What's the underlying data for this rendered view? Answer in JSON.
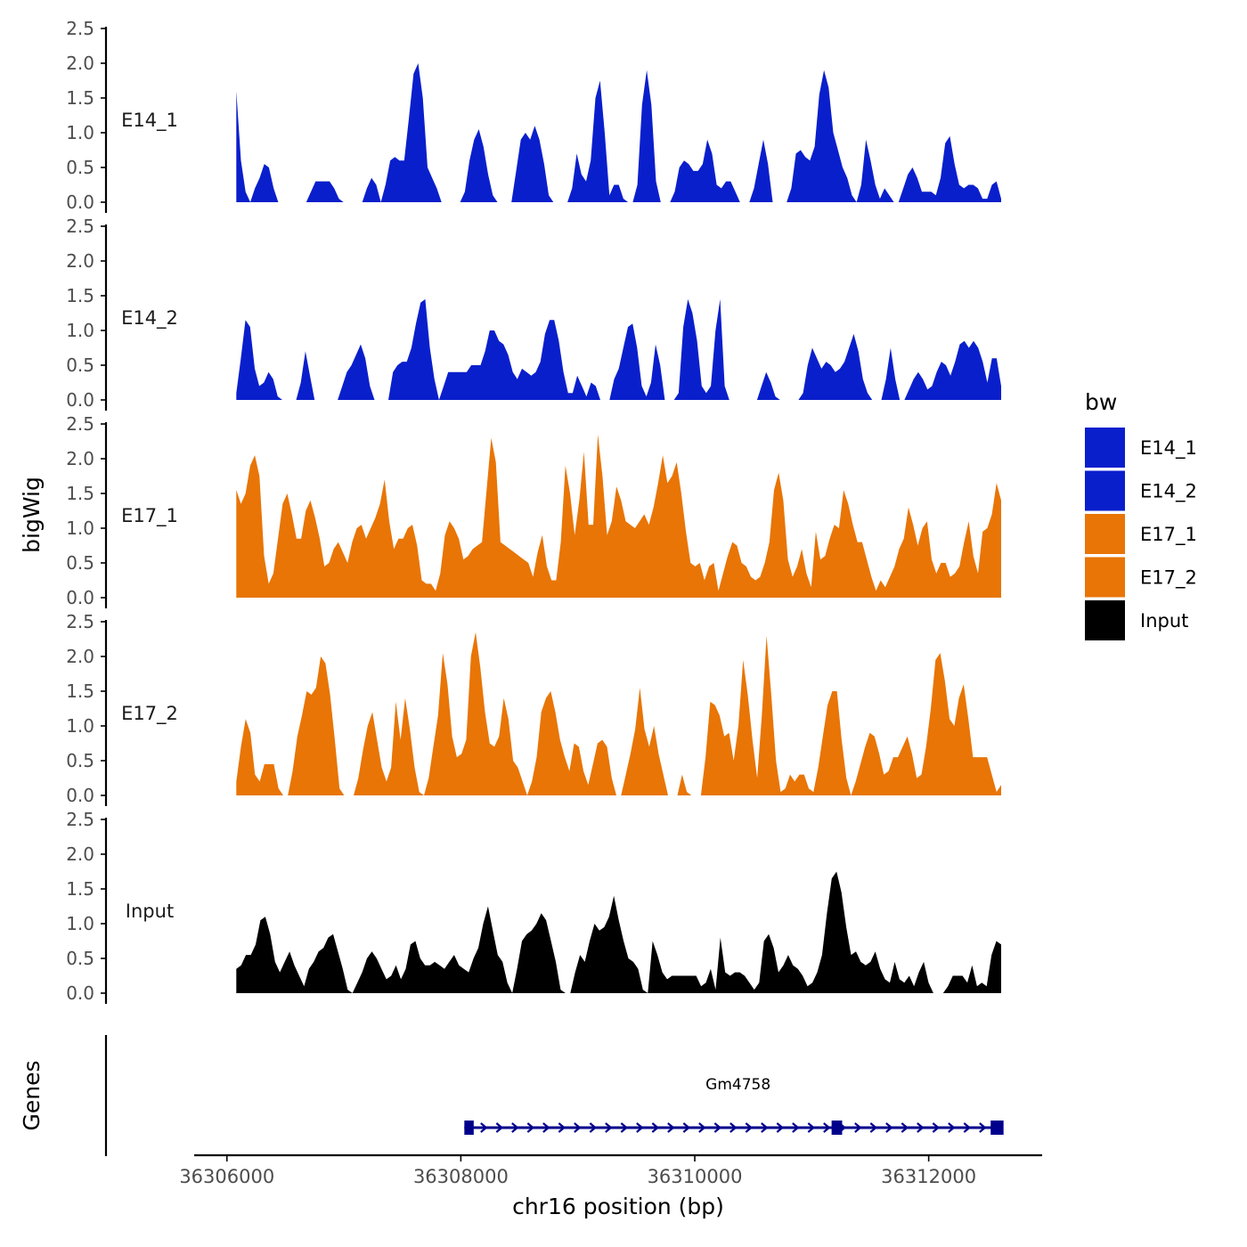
{
  "chart_data": {
    "type": "area",
    "layout": "stacked tracks, shared x axis",
    "ylabel": "bigWig",
    "xlabel": "chr16 position (bp)",
    "x_ticks": [
      36306000,
      36308000,
      36310000,
      36312000
    ],
    "x_tick_labels": [
      "36306000",
      "36308000",
      "36310000",
      "36312000"
    ],
    "xlim": [
      36305720,
      36312970
    ],
    "data_xrange": [
      36306080,
      36312620
    ],
    "ylim": [
      0,
      2.5
    ],
    "y_ticks": [
      0.0,
      0.5,
      1.0,
      1.5,
      2.0,
      2.5
    ],
    "y_tick_labels": [
      "0.0",
      "0.5",
      "1.0",
      "1.5",
      "2.0",
      "2.5"
    ],
    "legend": {
      "title": "bw",
      "position": "right",
      "entries": [
        {
          "label": "E14_1",
          "color": "#0A1FCC"
        },
        {
          "label": "E14_2",
          "color": "#0A1FCC"
        },
        {
          "label": "E17_1",
          "color": "#E87506"
        },
        {
          "label": "E17_2",
          "color": "#E87506"
        },
        {
          "label": "Input",
          "color": "#000000"
        }
      ]
    },
    "series": [
      {
        "name": "E14_1",
        "label": "E14_1",
        "color": "#0A1FCC",
        "values": [
          1.6,
          0.6,
          0.15,
          0,
          0.2,
          0.35,
          0.55,
          0.5,
          0.2,
          0,
          0,
          0,
          0,
          0,
          0,
          0,
          0.15,
          0.3,
          0.3,
          0.3,
          0.3,
          0.2,
          0.05,
          0,
          0,
          0,
          0,
          0,
          0.2,
          0.35,
          0.25,
          0,
          0.25,
          0.6,
          0.65,
          0.6,
          0.6,
          1.2,
          1.85,
          2.0,
          1.5,
          0.5,
          0.35,
          0.2,
          0,
          0,
          0,
          0,
          0,
          0.15,
          0.6,
          0.9,
          1.05,
          0.8,
          0.4,
          0.1,
          0,
          0,
          0,
          0,
          0.45,
          0.9,
          1.0,
          0.9,
          1.1,
          0.9,
          0.55,
          0.1,
          0,
          0,
          0,
          0,
          0.2,
          0.7,
          0.4,
          0.3,
          0.6,
          1.5,
          1.75,
          1.0,
          0.1,
          0.25,
          0.25,
          0.05,
          0,
          0,
          0.25,
          1.4,
          1.9,
          1.4,
          0.3,
          0,
          0,
          0,
          0.15,
          0.5,
          0.6,
          0.55,
          0.45,
          0.45,
          0.55,
          0.9,
          0.7,
          0.25,
          0.2,
          0.3,
          0.3,
          0.15,
          0,
          0,
          0,
          0.2,
          0.55,
          0.9,
          0.55,
          0,
          0,
          0,
          0,
          0.2,
          0.7,
          0.75,
          0.65,
          0.6,
          0.8,
          1.55,
          1.9,
          1.65,
          1.0,
          0.75,
          0.5,
          0.35,
          0.1,
          0,
          0.25,
          0.9,
          0.6,
          0.25,
          0.05,
          0.2,
          0.1,
          0,
          0,
          0.2,
          0.4,
          0.5,
          0.35,
          0.15,
          0.15,
          0.15,
          0.1,
          0.35,
          0.85,
          0.95,
          0.55,
          0.25,
          0.2,
          0.25,
          0.25,
          0.2,
          0.05,
          0.05,
          0.25,
          0.3,
          0.05
        ]
      },
      {
        "name": "E14_2",
        "label": "E14_2",
        "color": "#0A1FCC",
        "values": [
          0.1,
          0.6,
          1.15,
          1.05,
          0.45,
          0.2,
          0.25,
          0.4,
          0.3,
          0.05,
          0,
          0,
          0,
          0,
          0.25,
          0.7,
          0.35,
          0,
          0,
          0,
          0,
          0,
          0,
          0.2,
          0.4,
          0.5,
          0.65,
          0.8,
          0.6,
          0.2,
          0,
          0,
          0,
          0,
          0.4,
          0.5,
          0.55,
          0.55,
          0.75,
          1.1,
          1.4,
          1.45,
          0.75,
          0.3,
          0,
          0.2,
          0.4,
          0.4,
          0.4,
          0.4,
          0.4,
          0.5,
          0.5,
          0.5,
          0.7,
          1.0,
          1.0,
          0.85,
          0.8,
          0.65,
          0.4,
          0.3,
          0.45,
          0.4,
          0.35,
          0.4,
          0.55,
          0.95,
          1.15,
          1.15,
          0.85,
          0.4,
          0.1,
          0.1,
          0.35,
          0.2,
          0.05,
          0.25,
          0.2,
          0,
          0,
          0,
          0.3,
          0.45,
          0.75,
          1.05,
          1.1,
          0.75,
          0.2,
          0.05,
          0.25,
          0.8,
          0.5,
          0,
          0,
          0,
          0.1,
          1.05,
          1.45,
          1.25,
          0.85,
          0.2,
          0.1,
          0.2,
          1.0,
          1.45,
          0.2,
          0,
          0,
          0,
          0,
          0,
          0,
          0,
          0.2,
          0.4,
          0.25,
          0.05,
          0,
          0,
          0,
          0,
          0,
          0.1,
          0.5,
          0.75,
          0.6,
          0.45,
          0.55,
          0.5,
          0.4,
          0.45,
          0.55,
          0.75,
          0.95,
          0.7,
          0.3,
          0.1,
          0,
          0,
          0,
          0.3,
          0.75,
          0.3,
          0,
          0,
          0.15,
          0.3,
          0.4,
          0.3,
          0.15,
          0.2,
          0.4,
          0.55,
          0.5,
          0.35,
          0.55,
          0.8,
          0.85,
          0.75,
          0.85,
          0.75,
          0.55,
          0.25,
          0.6,
          0.6,
          0.2
        ]
      },
      {
        "name": "E17_1",
        "label": "E17_1",
        "color": "#E87506",
        "values": [
          1.55,
          1.35,
          1.5,
          1.9,
          2.05,
          1.75,
          0.6,
          0.2,
          0.35,
          0.85,
          1.35,
          1.5,
          1.2,
          0.85,
          0.85,
          1.25,
          1.4,
          1.15,
          0.85,
          0.45,
          0.5,
          0.7,
          0.8,
          0.65,
          0.5,
          0.8,
          1.0,
          1.05,
          0.85,
          1.0,
          1.15,
          1.35,
          1.7,
          1.1,
          0.7,
          0.85,
          0.85,
          1.0,
          1.05,
          0.75,
          0.25,
          0.2,
          0.2,
          0.1,
          0.35,
          0.9,
          1.1,
          1.0,
          0.85,
          0.55,
          0.6,
          0.7,
          0.75,
          0.8,
          1.55,
          2.3,
          1.95,
          0.8,
          0.75,
          0.7,
          0.65,
          0.6,
          0.55,
          0.5,
          0.3,
          0.65,
          0.9,
          0.45,
          0.25,
          0.25,
          0.8,
          1.9,
          1.5,
          0.9,
          1.4,
          2.1,
          1.05,
          1.05,
          2.35,
          1.75,
          0.9,
          1.1,
          1.6,
          1.4,
          1.1,
          1.05,
          1.0,
          1.1,
          1.2,
          1.05,
          1.3,
          1.65,
          2.05,
          1.65,
          1.75,
          1.95,
          1.5,
          0.95,
          0.5,
          0.45,
          0.5,
          0.25,
          0.45,
          0.5,
          0.1,
          0.35,
          0.6,
          0.8,
          0.75,
          0.5,
          0.45,
          0.3,
          0.25,
          0.3,
          0.5,
          0.8,
          1.55,
          1.8,
          1.4,
          0.55,
          0.3,
          0.45,
          0.7,
          0.35,
          0.15,
          0.95,
          0.55,
          0.6,
          0.85,
          1.05,
          1.0,
          1.55,
          1.35,
          1.05,
          0.8,
          0.8,
          0.55,
          0.3,
          0.1,
          0.25,
          0.15,
          0.3,
          0.45,
          0.7,
          0.85,
          1.3,
          1.05,
          0.75,
          1.0,
          1.1,
          0.55,
          0.35,
          0.5,
          0.5,
          0.3,
          0.35,
          0.45,
          0.8,
          1.1,
          0.6,
          0.35,
          0.95,
          1.0,
          1.2,
          1.65,
          1.4
        ]
      },
      {
        "name": "E17_2",
        "label": "E17_2",
        "color": "#E87506",
        "values": [
          0.2,
          0.7,
          1.1,
          0.9,
          0.3,
          0.2,
          0.45,
          0.45,
          0.45,
          0.1,
          0,
          0,
          0.35,
          0.85,
          1.15,
          1.5,
          1.45,
          1.55,
          2.0,
          1.9,
          1.45,
          0.8,
          0.1,
          0,
          0,
          0,
          0.25,
          0.65,
          1.0,
          1.2,
          0.8,
          0.4,
          0.2,
          0.4,
          1.35,
          0.8,
          1.4,
          0.95,
          0.4,
          0.05,
          0,
          0.25,
          0.7,
          1.15,
          2.05,
          1.6,
          0.85,
          0.55,
          0.6,
          0.8,
          2.0,
          2.35,
          1.85,
          1.2,
          0.75,
          0.7,
          0.85,
          1.4,
          1.1,
          0.5,
          0.4,
          0.2,
          0,
          0.2,
          0.55,
          1.2,
          1.4,
          1.5,
          1.2,
          0.8,
          0.55,
          0.35,
          0.75,
          0.7,
          0.35,
          0.15,
          0.45,
          0.75,
          0.8,
          0.7,
          0.25,
          0,
          0,
          0.3,
          0.6,
          0.95,
          1.55,
          0.95,
          0.7,
          1.0,
          0.6,
          0.3,
          0,
          0,
          0,
          0.3,
          0.05,
          0,
          0,
          0,
          0.55,
          1.35,
          1.3,
          1.15,
          0.85,
          0.9,
          0.5,
          1.0,
          1.95,
          1.45,
          0.8,
          0.25,
          1.15,
          2.3,
          1.45,
          0.5,
          0.05,
          0.1,
          0.3,
          0.2,
          0.3,
          0.3,
          0.1,
          0.05,
          0.4,
          0.85,
          1.3,
          1.5,
          1.5,
          0.8,
          0.25,
          0,
          0.2,
          0.45,
          0.7,
          0.9,
          0.85,
          0.6,
          0.3,
          0.35,
          0.55,
          0.55,
          0.7,
          0.85,
          0.6,
          0.25,
          0.3,
          0.7,
          1.25,
          1.95,
          2.05,
          1.65,
          1.1,
          1.0,
          1.4,
          1.6,
          1.1,
          0.55,
          0.55,
          0.55,
          0.55,
          0.3,
          0.05,
          0.15
        ]
      },
      {
        "name": "Input",
        "label": "Input",
        "color": "#000000",
        "values": [
          0.35,
          0.4,
          0.55,
          0.55,
          0.7,
          1.05,
          1.1,
          0.85,
          0.45,
          0.3,
          0.45,
          0.6,
          0.4,
          0.25,
          0.1,
          0.35,
          0.45,
          0.6,
          0.65,
          0.8,
          0.85,
          0.6,
          0.35,
          0.05,
          0,
          0.15,
          0.3,
          0.5,
          0.6,
          0.5,
          0.35,
          0.2,
          0.25,
          0.4,
          0.2,
          0.35,
          0.7,
          0.75,
          0.5,
          0.4,
          0.4,
          0.45,
          0.4,
          0.35,
          0.45,
          0.55,
          0.4,
          0.35,
          0.3,
          0.5,
          0.65,
          1.0,
          1.25,
          0.9,
          0.55,
          0.45,
          0.15,
          0,
          0.35,
          0.75,
          0.85,
          0.9,
          1.0,
          1.15,
          1.05,
          0.75,
          0.45,
          0.05,
          0,
          0,
          0.3,
          0.55,
          0.45,
          0.75,
          1.0,
          0.9,
          0.95,
          1.1,
          1.4,
          1.05,
          0.75,
          0.5,
          0.45,
          0.35,
          0.05,
          0,
          0.75,
          0.55,
          0.3,
          0.2,
          0.25,
          0.25,
          0.25,
          0.25,
          0.25,
          0.25,
          0.1,
          0.15,
          0.35,
          0.05,
          0.8,
          0.3,
          0.25,
          0.3,
          0.3,
          0.25,
          0.15,
          0.05,
          0.15,
          0.75,
          0.85,
          0.65,
          0.3,
          0.4,
          0.55,
          0.4,
          0.35,
          0.25,
          0.1,
          0.15,
          0.3,
          0.55,
          1.15,
          1.65,
          1.75,
          1.45,
          0.95,
          0.55,
          0.6,
          0.45,
          0.4,
          0.45,
          0.6,
          0.35,
          0.2,
          0.15,
          0.45,
          0.2,
          0.15,
          0.25,
          0.1,
          0.3,
          0.45,
          0.15,
          0,
          0,
          0,
          0.1,
          0.25,
          0.25,
          0.25,
          0.15,
          0.4,
          0.1,
          0.15,
          0.1,
          0.55,
          0.75,
          0.7
        ]
      }
    ],
    "gene_track": {
      "label": "Genes",
      "gene_name": "Gm4758",
      "line_start": 36308030,
      "line_end": 36312620,
      "exons": [
        {
          "start": 36308030,
          "end": 36308110
        },
        {
          "start": 36311170,
          "end": 36311260
        },
        {
          "start": 36312530,
          "end": 36312640
        }
      ],
      "strand": "+",
      "color": "#00008B"
    }
  }
}
